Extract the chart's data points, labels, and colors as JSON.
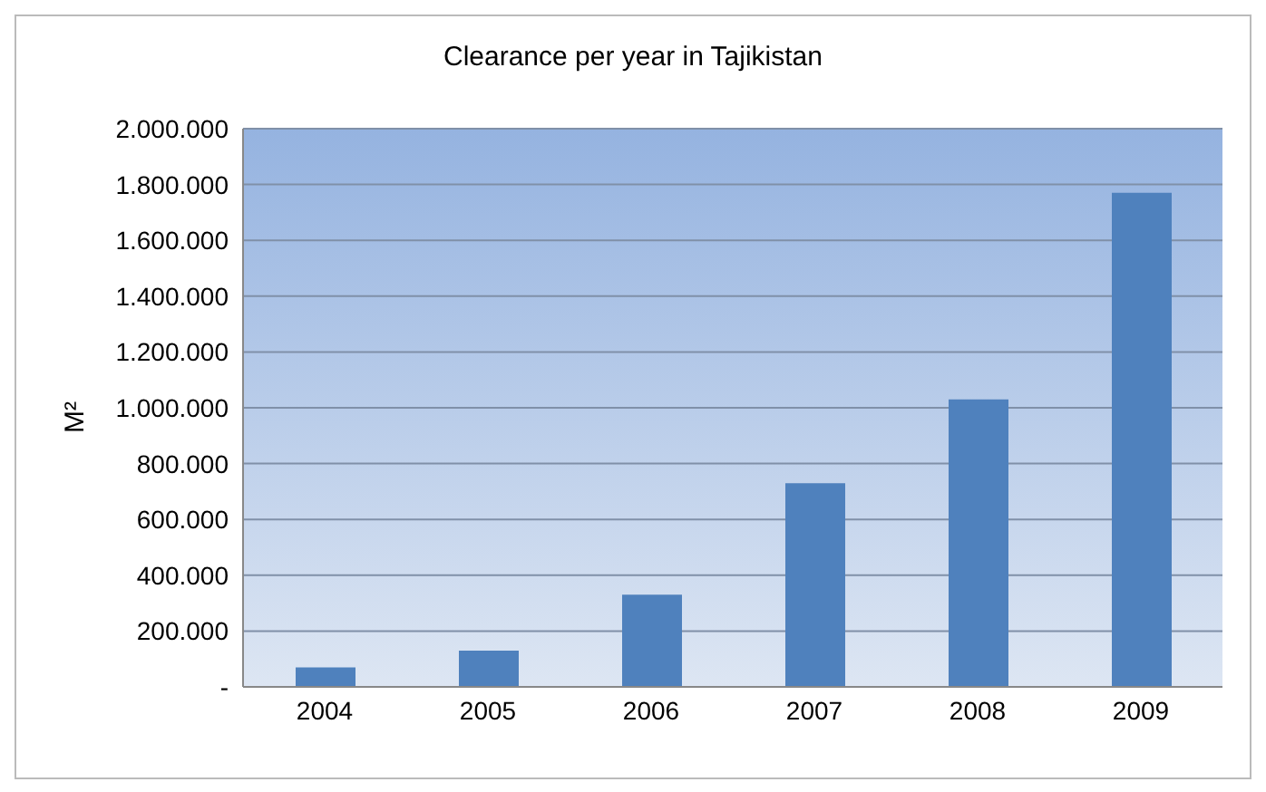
{
  "chart_data": {
    "type": "bar",
    "title": "Clearance per year in Tajikistan",
    "ylabel": "M²",
    "categories": [
      "2004",
      "2005",
      "2006",
      "2007",
      "2008",
      "2009"
    ],
    "values": [
      70000,
      130000,
      330000,
      730000,
      1030000,
      1770000
    ],
    "color": "#4f81bd",
    "ylim": [
      0,
      2000000
    ],
    "yticks": [
      {
        "value": 0,
        "label": "-"
      },
      {
        "value": 200000,
        "label": "200.000"
      },
      {
        "value": 400000,
        "label": "400.000"
      },
      {
        "value": 600000,
        "label": "600.000"
      },
      {
        "value": 800000,
        "label": "800.000"
      },
      {
        "value": 1000000,
        "label": "1.000.000"
      },
      {
        "value": 1200000,
        "label": "1.200.000"
      },
      {
        "value": 1400000,
        "label": "1.400.000"
      },
      {
        "value": 1600000,
        "label": "1.600.000"
      },
      {
        "value": 1800000,
        "label": "1.800.000"
      },
      {
        "value": 2000000,
        "label": "2.000.000"
      }
    ],
    "grid": "y"
  }
}
